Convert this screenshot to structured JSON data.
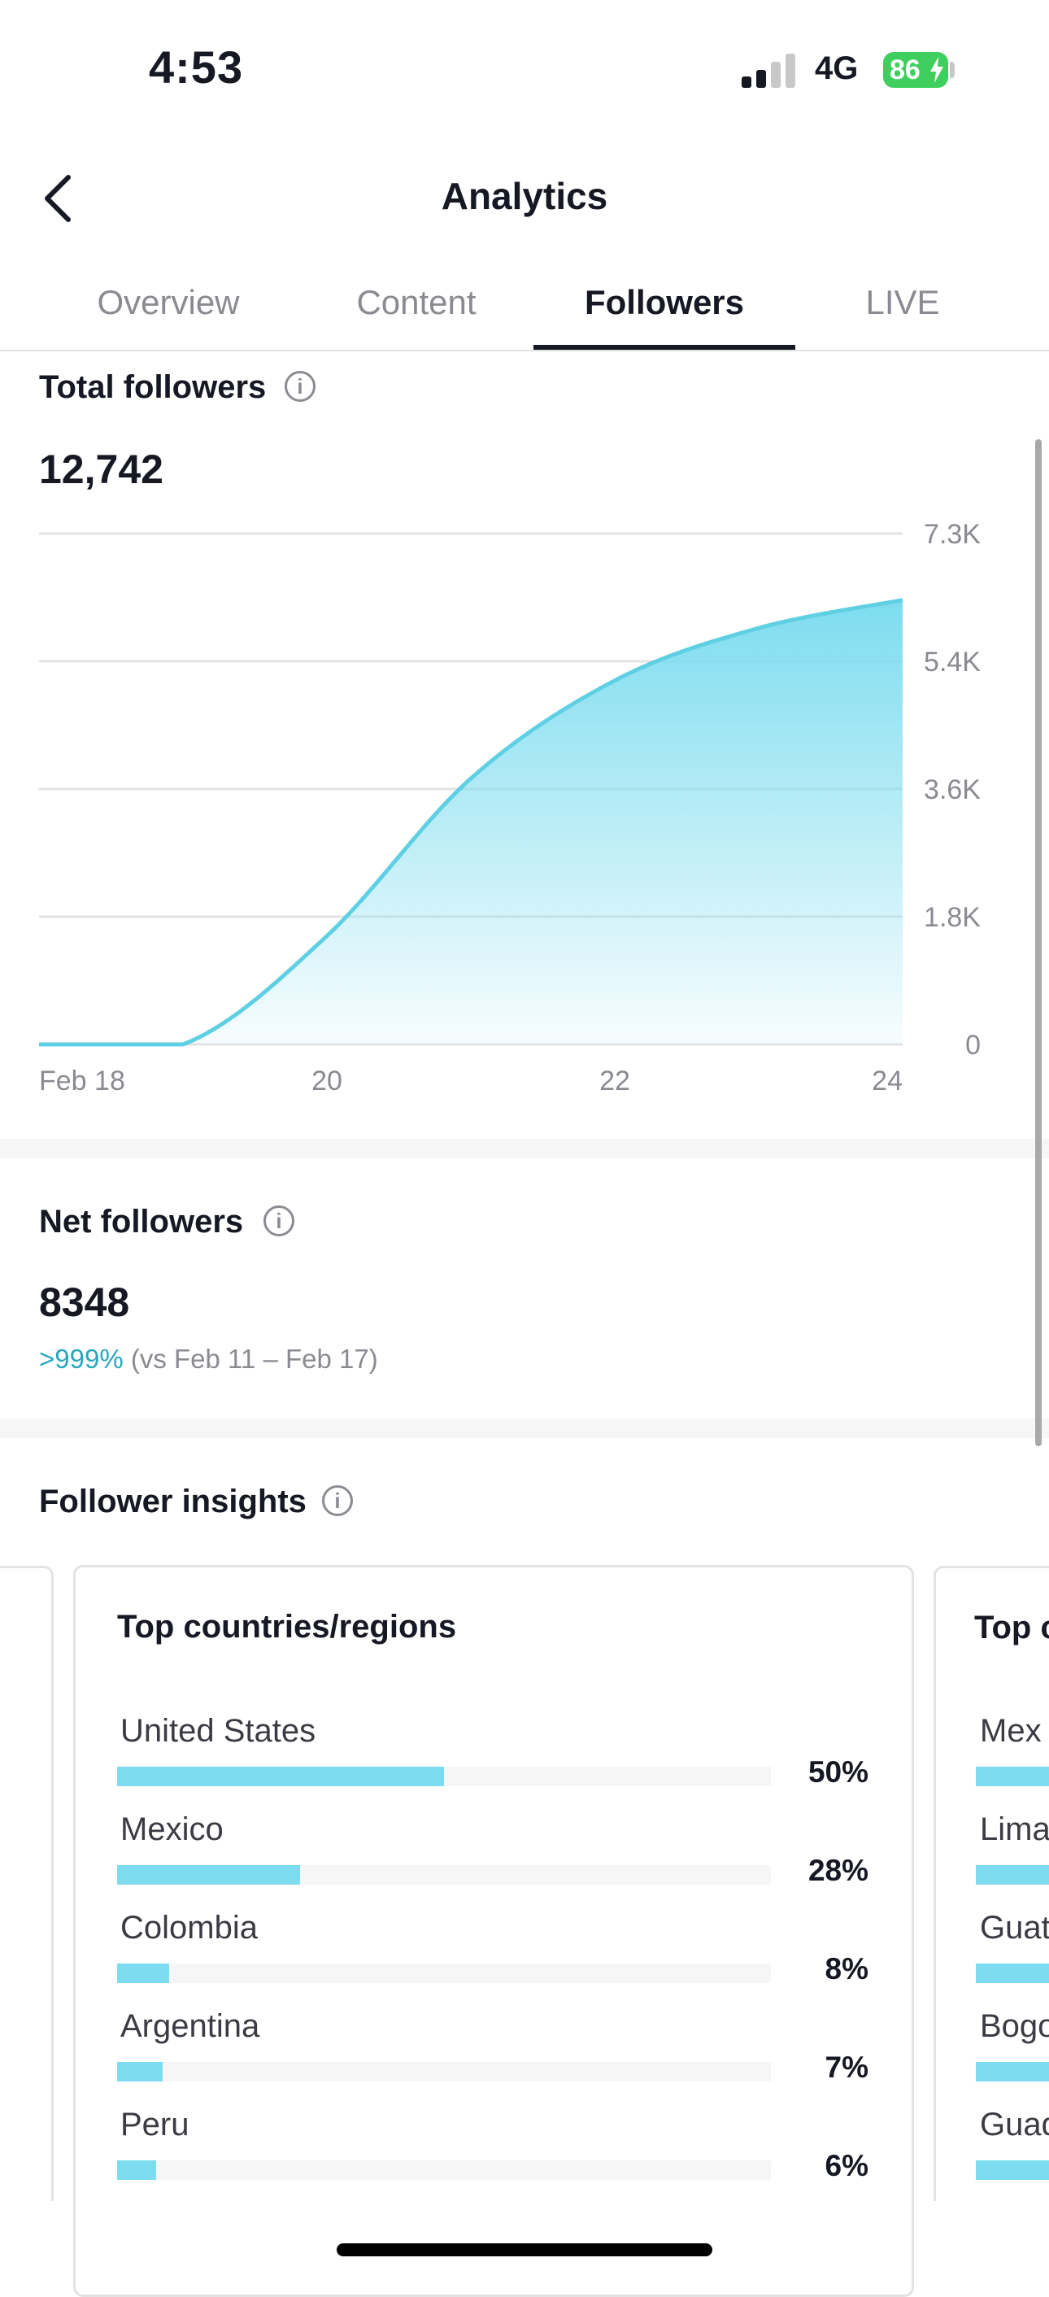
{
  "status_bar": {
    "time": "4:53",
    "network": "4G",
    "battery": "86",
    "signal_bars_active": 2,
    "signal_bars_total": 4
  },
  "header": {
    "title": "Analytics"
  },
  "tabs": [
    {
      "label": "Overview",
      "active": false
    },
    {
      "label": "Content",
      "active": false
    },
    {
      "label": "Followers",
      "active": true
    },
    {
      "label": "LIVE",
      "active": false
    }
  ],
  "total_followers": {
    "title": "Total followers",
    "value": "12,742"
  },
  "chart_data": {
    "type": "area",
    "x": [
      "Feb 18",
      "Feb 19",
      "Feb 20",
      "Feb 21",
      "Feb 22",
      "Feb 23",
      "Feb 24"
    ],
    "values": [
      0,
      0,
      1550,
      3800,
      5200,
      5950,
      6350
    ],
    "x_tick_labels": [
      "Feb 18",
      "20",
      "22",
      "24"
    ],
    "y_tick_labels": [
      "0",
      "1.8K",
      "3.6K",
      "5.4K",
      "7.3K"
    ],
    "ylim": [
      0,
      7300
    ],
    "grid": true,
    "color": "#5fd0e3"
  },
  "net_followers": {
    "title": "Net followers",
    "value": "8348",
    "growth": ">999%",
    "comparison": "(vs Feb 11 – Feb 17)"
  },
  "follower_insights": {
    "title": "Follower insights",
    "left_card_pcts": [
      "%",
      "%",
      "%",
      "%",
      "%"
    ],
    "countries_card": {
      "title": "Top countries/regions",
      "rows": [
        {
          "name": "United States",
          "pct": "50%",
          "value": 50
        },
        {
          "name": "Mexico",
          "pct": "28%",
          "value": 28
        },
        {
          "name": "Colombia",
          "pct": "8%",
          "value": 8
        },
        {
          "name": "Argentina",
          "pct": "7%",
          "value": 7
        },
        {
          "name": "Peru",
          "pct": "6%",
          "value": 6
        }
      ]
    },
    "cities_card": {
      "title": "Top c",
      "rows": [
        "Mex",
        "Lima",
        "Guat",
        "Bogo",
        "Guad"
      ]
    }
  }
}
